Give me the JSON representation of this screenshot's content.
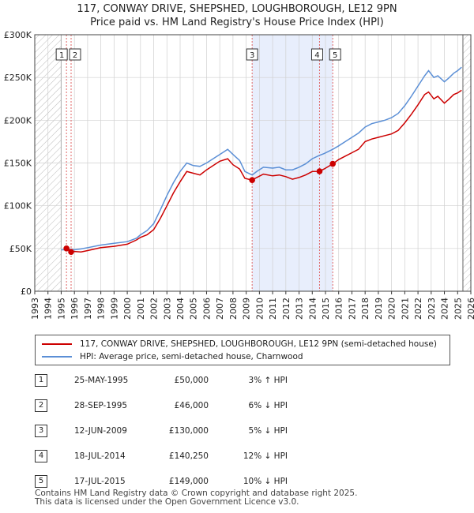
{
  "title_line1": "117, CONWAY DRIVE, SHEPSHED, LOUGHBOROUGH, LE12 9PN",
  "title_line2": "Price paid vs. HM Land Registry's House Price Index (HPI)",
  "colors": {
    "price_paid": "#cc0000",
    "hpi": "#5b8fd6",
    "hatch": "#bbbbbb",
    "shade": "#e8eefc",
    "vline": "#e06666"
  },
  "legend": {
    "price_label": "117, CONWAY DRIVE, SHEPSHED, LOUGHBOROUGH, LE12 9PN (semi-detached house)",
    "hpi_label": "HPI: Average price, semi-detached house, Charnwood"
  },
  "transactions": [
    {
      "num": "1",
      "date": "25-MAY-1995",
      "price": "£50,000",
      "hpi": "3% ↑ HPI"
    },
    {
      "num": "2",
      "date": "28-SEP-1995",
      "price": "£46,000",
      "hpi": "6% ↓ HPI"
    },
    {
      "num": "3",
      "date": "12-JUN-2009",
      "price": "£130,000",
      "hpi": "5% ↓ HPI"
    },
    {
      "num": "4",
      "date": "18-JUL-2014",
      "price": "£140,250",
      "hpi": "12% ↓ HPI"
    },
    {
      "num": "5",
      "date": "17-JUL-2015",
      "price": "£149,000",
      "hpi": "10% ↓ HPI"
    }
  ],
  "footer_line1": "Contains HM Land Registry data © Crown copyright and database right 2025.",
  "footer_line2": "This data is licensed under the Open Government Licence v3.0.",
  "chart_data": {
    "type": "line",
    "title": "117, CONWAY DRIVE, SHEPSHED, LOUGHBOROUGH, LE12 9PN",
    "subtitle": "Price paid vs. HM Land Registry's House Price Index (HPI)",
    "xlabel": "",
    "ylabel": "",
    "xlim": [
      1993,
      2026
    ],
    "ylim": [
      0,
      300000
    ],
    "grid": true,
    "legend_position": "below",
    "x_ticks": [
      "1993",
      "1994",
      "1995",
      "1996",
      "1997",
      "1998",
      "1999",
      "2000",
      "2001",
      "2002",
      "2003",
      "2004",
      "2005",
      "2006",
      "2007",
      "2008",
      "2009",
      "2010",
      "2011",
      "2012",
      "2013",
      "2014",
      "2015",
      "2016",
      "2017",
      "2018",
      "2019",
      "2020",
      "2021",
      "2022",
      "2023",
      "2024",
      "2025",
      "2026"
    ],
    "y_ticks": [
      {
        "value": 0,
        "label": "£0"
      },
      {
        "value": 50000,
        "label": "£50K"
      },
      {
        "value": 100000,
        "label": "£100K"
      },
      {
        "value": 150000,
        "label": "£150K"
      },
      {
        "value": 200000,
        "label": "£200K"
      },
      {
        "value": 250000,
        "label": "£250K"
      },
      {
        "value": 300000,
        "label": "£300K"
      }
    ],
    "hatched_ranges": [
      [
        1993,
        1995.0
      ],
      [
        2025.4,
        2026
      ]
    ],
    "shaded_range": [
      2009.45,
      2015.55
    ],
    "series": [
      {
        "name": "117, CONWAY DRIVE, SHEPSHED, LOUGHBOROUGH, LE12 9PN (semi-detached house)",
        "points": [
          [
            1995.4,
            50000
          ],
          [
            1995.75,
            46000
          ],
          [
            1996.0,
            46500
          ],
          [
            1996.5,
            46000
          ],
          [
            1997,
            47500
          ],
          [
            1998,
            51000
          ],
          [
            1999,
            52500
          ],
          [
            2000,
            55000
          ],
          [
            2000.7,
            60000
          ],
          [
            2001,
            63000
          ],
          [
            2001.5,
            66000
          ],
          [
            2002,
            72000
          ],
          [
            2002.5,
            85000
          ],
          [
            2003,
            100000
          ],
          [
            2003.5,
            115000
          ],
          [
            2004,
            128000
          ],
          [
            2004.5,
            140000
          ],
          [
            2005,
            138000
          ],
          [
            2005.5,
            136000
          ],
          [
            2006,
            142000
          ],
          [
            2006.5,
            147000
          ],
          [
            2007,
            152000
          ],
          [
            2007.6,
            155000
          ],
          [
            2008,
            148000
          ],
          [
            2008.5,
            143000
          ],
          [
            2008.9,
            132000
          ],
          [
            2009.45,
            130000
          ],
          [
            2009.8,
            133000
          ],
          [
            2010.3,
            137000
          ],
          [
            2011,
            135000
          ],
          [
            2011.5,
            136000
          ],
          [
            2012,
            134000
          ],
          [
            2012.5,
            131000
          ],
          [
            2013,
            133000
          ],
          [
            2013.5,
            136000
          ],
          [
            2014.0,
            140000
          ],
          [
            2014.55,
            140250
          ],
          [
            2014.9,
            143000
          ],
          [
            2015.55,
            149000
          ],
          [
            2016,
            154000
          ],
          [
            2016.5,
            158000
          ],
          [
            2017,
            162000
          ],
          [
            2017.5,
            166000
          ],
          [
            2018,
            175000
          ],
          [
            2018.5,
            178000
          ],
          [
            2019,
            180000
          ],
          [
            2019.5,
            182000
          ],
          [
            2020,
            184000
          ],
          [
            2020.5,
            188000
          ],
          [
            2021,
            197000
          ],
          [
            2021.5,
            207000
          ],
          [
            2022,
            218000
          ],
          [
            2022.5,
            230000
          ],
          [
            2022.8,
            233000
          ],
          [
            2023.2,
            225000
          ],
          [
            2023.5,
            228000
          ],
          [
            2024,
            220000
          ],
          [
            2024.3,
            224000
          ],
          [
            2024.7,
            230000
          ],
          [
            2025.0,
            232000
          ],
          [
            2025.3,
            235000
          ]
        ]
      },
      {
        "name": "HPI: Average price, semi-detached house, Charnwood",
        "points": [
          [
            1995.0,
            48500
          ],
          [
            1995.4,
            48500
          ],
          [
            1995.75,
            49000
          ],
          [
            1996.0,
            48500
          ],
          [
            1996.5,
            49500
          ],
          [
            1997,
            51000
          ],
          [
            1998,
            54000
          ],
          [
            1999,
            56000
          ],
          [
            2000,
            58000
          ],
          [
            2000.7,
            62000
          ],
          [
            2001,
            66000
          ],
          [
            2001.5,
            71000
          ],
          [
            2002,
            79000
          ],
          [
            2002.5,
            95000
          ],
          [
            2003,
            112000
          ],
          [
            2003.5,
            127000
          ],
          [
            2004,
            140000
          ],
          [
            2004.5,
            150000
          ],
          [
            2005,
            147000
          ],
          [
            2005.5,
            146000
          ],
          [
            2006,
            150000
          ],
          [
            2006.5,
            155000
          ],
          [
            2007,
            160000
          ],
          [
            2007.6,
            166000
          ],
          [
            2008,
            160000
          ],
          [
            2008.5,
            153000
          ],
          [
            2008.9,
            140000
          ],
          [
            2009.45,
            136000
          ],
          [
            2009.8,
            140000
          ],
          [
            2010.3,
            145000
          ],
          [
            2011,
            144000
          ],
          [
            2011.5,
            145000
          ],
          [
            2012,
            142000
          ],
          [
            2012.5,
            142000
          ],
          [
            2013,
            145000
          ],
          [
            2013.5,
            149000
          ],
          [
            2014.0,
            155000
          ],
          [
            2014.55,
            159000
          ],
          [
            2014.9,
            161000
          ],
          [
            2015.55,
            166000
          ],
          [
            2016,
            170000
          ],
          [
            2016.5,
            175000
          ],
          [
            2017,
            180000
          ],
          [
            2017.5,
            185000
          ],
          [
            2018,
            192000
          ],
          [
            2018.5,
            196000
          ],
          [
            2019,
            198000
          ],
          [
            2019.5,
            200000
          ],
          [
            2020,
            203000
          ],
          [
            2020.5,
            208000
          ],
          [
            2021,
            217000
          ],
          [
            2021.5,
            228000
          ],
          [
            2022,
            240000
          ],
          [
            2022.5,
            252000
          ],
          [
            2022.8,
            258000
          ],
          [
            2023.2,
            250000
          ],
          [
            2023.5,
            252000
          ],
          [
            2024,
            245000
          ],
          [
            2024.3,
            249000
          ],
          [
            2024.7,
            255000
          ],
          [
            2025.0,
            258000
          ],
          [
            2025.3,
            262000
          ]
        ]
      }
    ],
    "markers": [
      {
        "num": "1",
        "x": 1995.4,
        "y": 50000
      },
      {
        "num": "2",
        "x": 1995.75,
        "y": 46000
      },
      {
        "num": "3",
        "x": 2009.45,
        "y": 130000
      },
      {
        "num": "4",
        "x": 2014.55,
        "y": 140250
      },
      {
        "num": "5",
        "x": 2015.55,
        "y": 149000
      }
    ]
  }
}
